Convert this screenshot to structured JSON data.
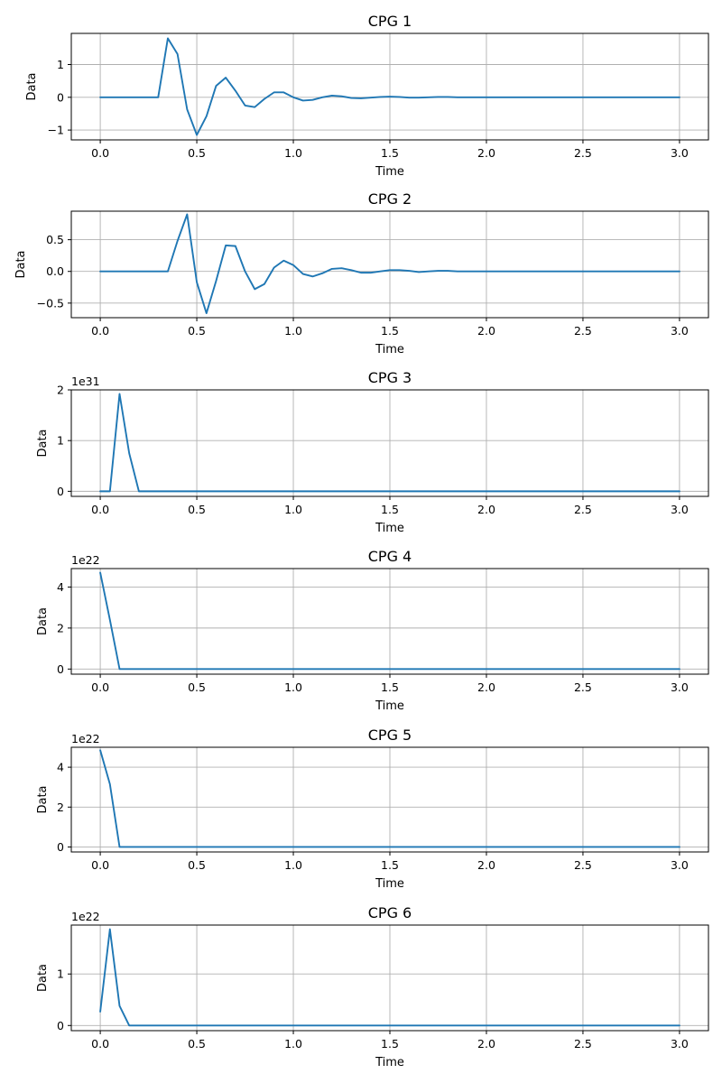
{
  "figure": {
    "line_color": "#1f77b4",
    "grid": true
  },
  "chart_data": [
    {
      "type": "line",
      "title": "CPG 1",
      "xlabel": "Time",
      "ylabel": "Data",
      "offset_text": "",
      "xlim": [
        -0.15,
        3.15
      ],
      "ylim": [
        -1.3,
        1.95
      ],
      "xticks": [
        0.0,
        0.5,
        1.0,
        1.5,
        2.0,
        2.5,
        3.0
      ],
      "xtick_labels": [
        "0.0",
        "0.5",
        "1.0",
        "1.5",
        "2.0",
        "2.5",
        "3.0"
      ],
      "yticks": [
        -1,
        0,
        1
      ],
      "ytick_labels": [
        "−1",
        "0",
        "1"
      ],
      "x": [
        0.0,
        0.05,
        0.1,
        0.15,
        0.2,
        0.25,
        0.3,
        0.35,
        0.4,
        0.45,
        0.5,
        0.55,
        0.6,
        0.65,
        0.7,
        0.75,
        0.8,
        0.85,
        0.9,
        0.95,
        1.0,
        1.05,
        1.1,
        1.15,
        1.2,
        1.25,
        1.3,
        1.35,
        1.4,
        1.45,
        1.5,
        1.55,
        1.6,
        1.65,
        1.7,
        1.75,
        1.8,
        1.85,
        1.9,
        1.95,
        2.0,
        2.05,
        2.1,
        2.15,
        2.2,
        2.25,
        2.3,
        2.35,
        2.4,
        2.45,
        2.5,
        2.55,
        2.6,
        2.65,
        2.7,
        2.75,
        2.8,
        2.85,
        2.9,
        2.95,
        3.0
      ],
      "y": [
        0,
        0,
        0,
        0,
        0,
        0,
        0,
        1.8,
        1.32,
        -0.37,
        -1.15,
        -0.58,
        0.35,
        0.6,
        0.2,
        -0.25,
        -0.3,
        -0.05,
        0.15,
        0.15,
        0.0,
        -0.1,
        -0.08,
        0.0,
        0.05,
        0.03,
        -0.02,
        -0.03,
        -0.01,
        0.01,
        0.02,
        0.01,
        -0.01,
        -0.01,
        0.0,
        0.01,
        0.01,
        0,
        0,
        0,
        0,
        0,
        0,
        0,
        0,
        0,
        0,
        0,
        0,
        0,
        0,
        0,
        0,
        0,
        0,
        0,
        0,
        0,
        0,
        0,
        0
      ]
    },
    {
      "type": "line",
      "title": "CPG 2",
      "xlabel": "Time",
      "ylabel": "Data",
      "offset_text": "",
      "xlim": [
        -0.15,
        3.15
      ],
      "ylim": [
        -0.73,
        0.95
      ],
      "xticks": [
        0.0,
        0.5,
        1.0,
        1.5,
        2.0,
        2.5,
        3.0
      ],
      "xtick_labels": [
        "0.0",
        "0.5",
        "1.0",
        "1.5",
        "2.0",
        "2.5",
        "3.0"
      ],
      "yticks": [
        -0.5,
        0.0,
        0.5
      ],
      "ytick_labels": [
        "−0.5",
        "0.0",
        "0.5"
      ],
      "x": [
        0.0,
        0.05,
        0.1,
        0.15,
        0.2,
        0.25,
        0.3,
        0.35,
        0.4,
        0.45,
        0.5,
        0.55,
        0.6,
        0.65,
        0.7,
        0.75,
        0.8,
        0.85,
        0.9,
        0.95,
        1.0,
        1.05,
        1.1,
        1.15,
        1.2,
        1.25,
        1.3,
        1.35,
        1.4,
        1.45,
        1.5,
        1.55,
        1.6,
        1.65,
        1.7,
        1.75,
        1.8,
        1.85,
        1.9,
        1.95,
        2.0,
        2.05,
        2.1,
        2.15,
        2.2,
        2.25,
        2.3,
        2.35,
        2.4,
        2.45,
        2.5,
        2.55,
        2.6,
        2.65,
        2.7,
        2.75,
        2.8,
        2.85,
        2.9,
        2.95,
        3.0
      ],
      "y": [
        0,
        0,
        0,
        0,
        0,
        0,
        0,
        0,
        0.48,
        0.9,
        -0.17,
        -0.66,
        -0.15,
        0.41,
        0.4,
        0.0,
        -0.28,
        -0.2,
        0.06,
        0.17,
        0.1,
        -0.04,
        -0.08,
        -0.03,
        0.04,
        0.05,
        0.02,
        -0.02,
        -0.02,
        0.0,
        0.02,
        0.02,
        0.01,
        -0.01,
        0.0,
        0.01,
        0.01,
        0,
        0,
        0,
        0,
        0,
        0,
        0,
        0,
        0,
        0,
        0,
        0,
        0,
        0,
        0,
        0,
        0,
        0,
        0,
        0,
        0,
        0,
        0,
        0
      ]
    },
    {
      "type": "line",
      "title": "CPG 3",
      "xlabel": "Time",
      "ylabel": "Data",
      "offset_text": "1e31",
      "xlim": [
        -0.15,
        3.15
      ],
      "ylim": [
        -0.1,
        2.0
      ],
      "xticks": [
        0.0,
        0.5,
        1.0,
        1.5,
        2.0,
        2.5,
        3.0
      ],
      "xtick_labels": [
        "0.0",
        "0.5",
        "1.0",
        "1.5",
        "2.0",
        "2.5",
        "3.0"
      ],
      "yticks": [
        0,
        1,
        2
      ],
      "ytick_labels": [
        "0",
        "1",
        "2"
      ],
      "x": [
        0.0,
        0.05,
        0.1,
        0.15,
        0.2,
        0.25,
        0.3,
        0.35,
        0.4,
        0.45,
        0.5,
        0.55,
        0.6,
        0.65,
        0.7,
        0.75,
        0.8,
        0.85,
        0.9,
        0.95,
        1.0,
        1.05,
        1.1,
        1.15,
        1.2,
        1.25,
        1.3,
        1.35,
        1.4,
        1.45,
        1.5,
        1.55,
        1.6,
        1.65,
        1.7,
        1.75,
        1.8,
        1.85,
        1.9,
        1.95,
        2.0,
        2.05,
        2.1,
        2.15,
        2.2,
        2.25,
        2.3,
        2.35,
        2.4,
        2.45,
        2.5,
        2.55,
        2.6,
        2.65,
        2.7,
        2.75,
        2.8,
        2.85,
        2.9,
        2.95,
        3.0
      ],
      "y": [
        0,
        0,
        1.92,
        0.75,
        0,
        0,
        0,
        0,
        0,
        0,
        0,
        0,
        0,
        0,
        0,
        0,
        0,
        0,
        0,
        0,
        0,
        0,
        0,
        0,
        0,
        0,
        0,
        0,
        0,
        0,
        0,
        0,
        0,
        0,
        0,
        0,
        0,
        0,
        0,
        0,
        0,
        0,
        0,
        0,
        0,
        0,
        0,
        0,
        0,
        0,
        0,
        0,
        0,
        0,
        0,
        0,
        0,
        0,
        0,
        0,
        0
      ]
    },
    {
      "type": "line",
      "title": "CPG 4",
      "xlabel": "Time",
      "ylabel": "Data",
      "offset_text": "1e22",
      "xlim": [
        -0.15,
        3.15
      ],
      "ylim": [
        -0.25,
        4.9
      ],
      "xticks": [
        0.0,
        0.5,
        1.0,
        1.5,
        2.0,
        2.5,
        3.0
      ],
      "xtick_labels": [
        "0.0",
        "0.5",
        "1.0",
        "1.5",
        "2.0",
        "2.5",
        "3.0"
      ],
      "yticks": [
        0,
        2,
        4
      ],
      "ytick_labels": [
        "0",
        "2",
        "4"
      ],
      "x": [
        0.0,
        0.05,
        0.1,
        0.15,
        0.2,
        0.25,
        0.3,
        0.35,
        0.4,
        0.45,
        0.5,
        0.55,
        0.6,
        0.65,
        0.7,
        0.75,
        0.8,
        0.85,
        0.9,
        0.95,
        1.0,
        1.05,
        1.1,
        1.15,
        1.2,
        1.25,
        1.3,
        1.35,
        1.4,
        1.45,
        1.5,
        1.55,
        1.6,
        1.65,
        1.7,
        1.75,
        1.8,
        1.85,
        1.9,
        1.95,
        2.0,
        2.05,
        2.1,
        2.15,
        2.2,
        2.25,
        2.3,
        2.35,
        2.4,
        2.45,
        2.5,
        2.55,
        2.6,
        2.65,
        2.7,
        2.75,
        2.8,
        2.85,
        2.9,
        2.95,
        3.0
      ],
      "y": [
        4.7,
        2.4,
        0,
        0,
        0,
        0,
        0,
        0,
        0,
        0,
        0,
        0,
        0,
        0,
        0,
        0,
        0,
        0,
        0,
        0,
        0,
        0,
        0,
        0,
        0,
        0,
        0,
        0,
        0,
        0,
        0,
        0,
        0,
        0,
        0,
        0,
        0,
        0,
        0,
        0,
        0,
        0,
        0,
        0,
        0,
        0,
        0,
        0,
        0,
        0,
        0,
        0,
        0,
        0,
        0,
        0,
        0,
        0,
        0,
        0,
        0
      ]
    },
    {
      "type": "line",
      "title": "CPG 5",
      "xlabel": "Time",
      "ylabel": "Data",
      "offset_text": "1e22",
      "xlim": [
        -0.15,
        3.15
      ],
      "ylim": [
        -0.25,
        5.0
      ],
      "xticks": [
        0.0,
        0.5,
        1.0,
        1.5,
        2.0,
        2.5,
        3.0
      ],
      "xtick_labels": [
        "0.0",
        "0.5",
        "1.0",
        "1.5",
        "2.0",
        "2.5",
        "3.0"
      ],
      "yticks": [
        0,
        2,
        4
      ],
      "ytick_labels": [
        "0",
        "2",
        "4"
      ],
      "x": [
        0.0,
        0.05,
        0.1,
        0.15,
        0.2,
        0.25,
        0.3,
        0.35,
        0.4,
        0.45,
        0.5,
        0.55,
        0.6,
        0.65,
        0.7,
        0.75,
        0.8,
        0.85,
        0.9,
        0.95,
        1.0,
        1.05,
        1.1,
        1.15,
        1.2,
        1.25,
        1.3,
        1.35,
        1.4,
        1.45,
        1.5,
        1.55,
        1.6,
        1.65,
        1.7,
        1.75,
        1.8,
        1.85,
        1.9,
        1.95,
        2.0,
        2.05,
        2.1,
        2.15,
        2.2,
        2.25,
        2.3,
        2.35,
        2.4,
        2.45,
        2.5,
        2.55,
        2.6,
        2.65,
        2.7,
        2.75,
        2.8,
        2.85,
        2.9,
        2.95,
        3.0
      ],
      "y": [
        4.85,
        3.15,
        0,
        0,
        0,
        0,
        0,
        0,
        0,
        0,
        0,
        0,
        0,
        0,
        0,
        0,
        0,
        0,
        0,
        0,
        0,
        0,
        0,
        0,
        0,
        0,
        0,
        0,
        0,
        0,
        0,
        0,
        0,
        0,
        0,
        0,
        0,
        0,
        0,
        0,
        0,
        0,
        0,
        0,
        0,
        0,
        0,
        0,
        0,
        0,
        0,
        0,
        0,
        0,
        0,
        0,
        0,
        0,
        0,
        0,
        0
      ]
    },
    {
      "type": "line",
      "title": "CPG 6",
      "xlabel": "Time",
      "ylabel": "Data",
      "offset_text": "1e22",
      "xlim": [
        -0.15,
        3.15
      ],
      "ylim": [
        -0.1,
        1.95
      ],
      "xticks": [
        0.0,
        0.5,
        1.0,
        1.5,
        2.0,
        2.5,
        3.0
      ],
      "xtick_labels": [
        "0.0",
        "0.5",
        "1.0",
        "1.5",
        "2.0",
        "2.5",
        "3.0"
      ],
      "yticks": [
        0,
        1
      ],
      "ytick_labels": [
        "0",
        "1"
      ],
      "x": [
        0.0,
        0.05,
        0.1,
        0.15,
        0.2,
        0.25,
        0.3,
        0.35,
        0.4,
        0.45,
        0.5,
        0.55,
        0.6,
        0.65,
        0.7,
        0.75,
        0.8,
        0.85,
        0.9,
        0.95,
        1.0,
        1.05,
        1.1,
        1.15,
        1.2,
        1.25,
        1.3,
        1.35,
        1.4,
        1.45,
        1.5,
        1.55,
        1.6,
        1.65,
        1.7,
        1.75,
        1.8,
        1.85,
        1.9,
        1.95,
        2.0,
        2.05,
        2.1,
        2.15,
        2.2,
        2.25,
        2.3,
        2.35,
        2.4,
        2.45,
        2.5,
        2.55,
        2.6,
        2.65,
        2.7,
        2.75,
        2.8,
        2.85,
        2.9,
        2.95,
        3.0
      ],
      "y": [
        0.27,
        1.87,
        0.38,
        0,
        0,
        0,
        0,
        0,
        0,
        0,
        0,
        0,
        0,
        0,
        0,
        0,
        0,
        0,
        0,
        0,
        0,
        0,
        0,
        0,
        0,
        0,
        0,
        0,
        0,
        0,
        0,
        0,
        0,
        0,
        0,
        0,
        0,
        0,
        0,
        0,
        0,
        0,
        0,
        0,
        0,
        0,
        0,
        0,
        0,
        0,
        0,
        0,
        0,
        0,
        0,
        0,
        0,
        0,
        0,
        0,
        0
      ]
    }
  ]
}
